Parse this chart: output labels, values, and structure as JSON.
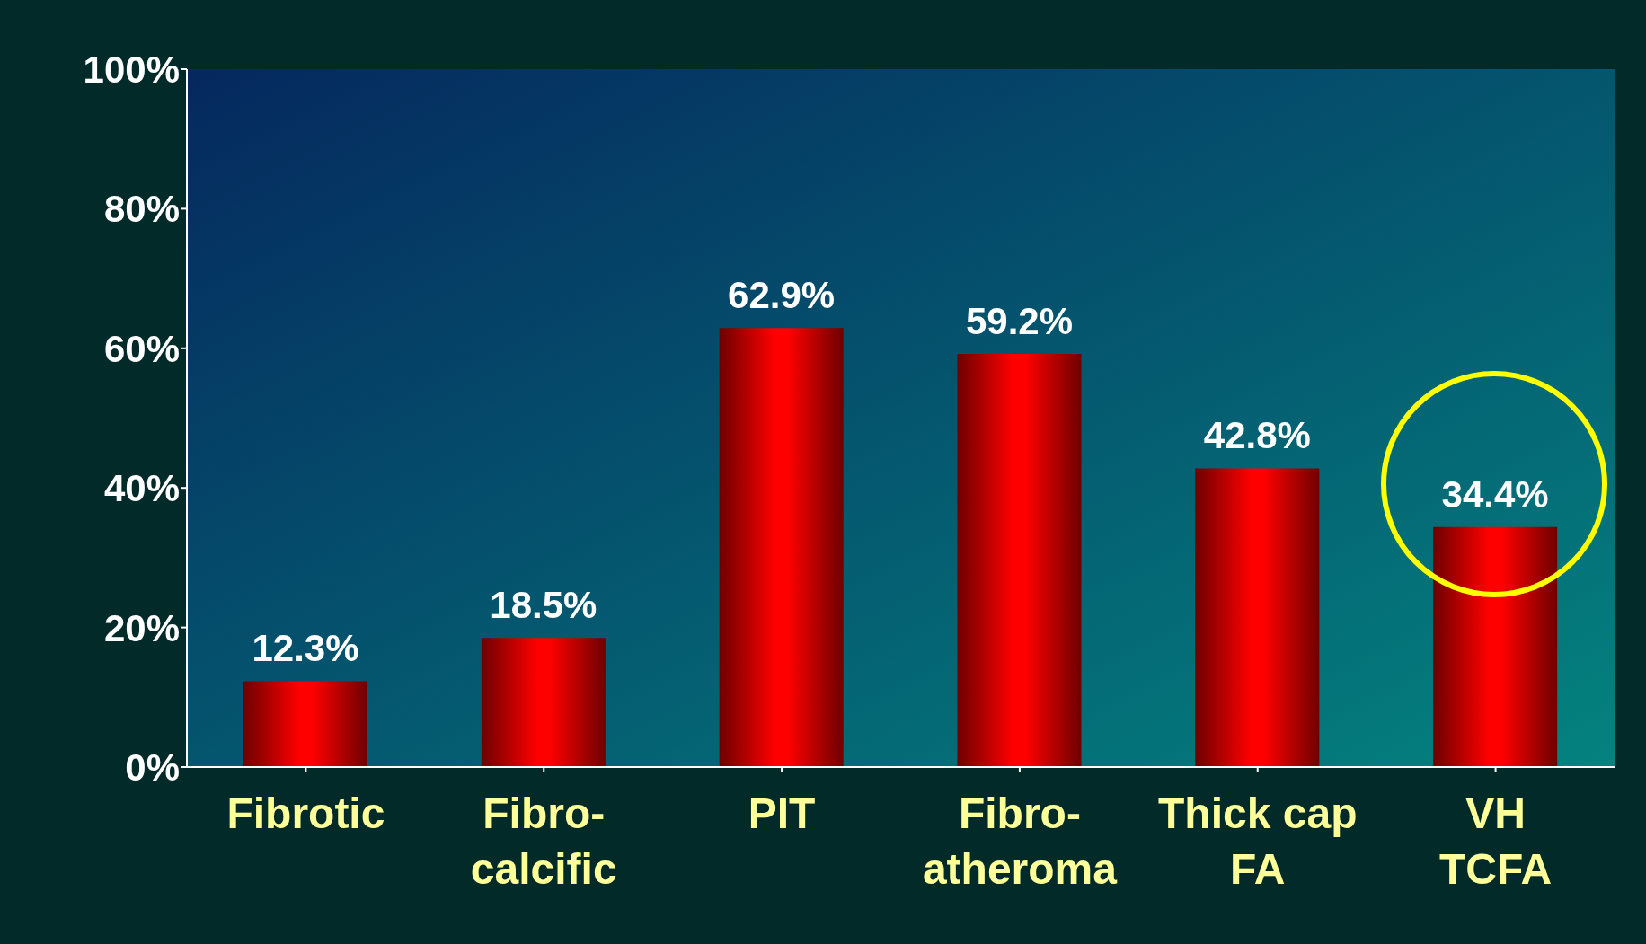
{
  "chart_data": {
    "type": "bar",
    "categories": [
      "Fibrotic",
      "Fibro-calcific",
      "PIT",
      "Fibro-atheroma",
      "Thick cap FA",
      "VH TCFA"
    ],
    "values": [
      12.3,
      18.5,
      62.9,
      59.2,
      42.8,
      34.4
    ],
    "value_labels": [
      "12.3%",
      "18.5%",
      "62.9%",
      "59.2%",
      "42.8%",
      "34.4%"
    ],
    "color": "#ff0000",
    "ylim": [
      0,
      100
    ],
    "yticks": [
      {
        "value": 0,
        "label": "0%"
      },
      {
        "value": 20,
        "label": "20%"
      },
      {
        "value": 40,
        "label": "40%"
      },
      {
        "value": 60,
        "label": "60%"
      },
      {
        "value": 80,
        "label": "80%"
      },
      {
        "value": 100,
        "label": "100%"
      }
    ],
    "legend": false
  }
}
